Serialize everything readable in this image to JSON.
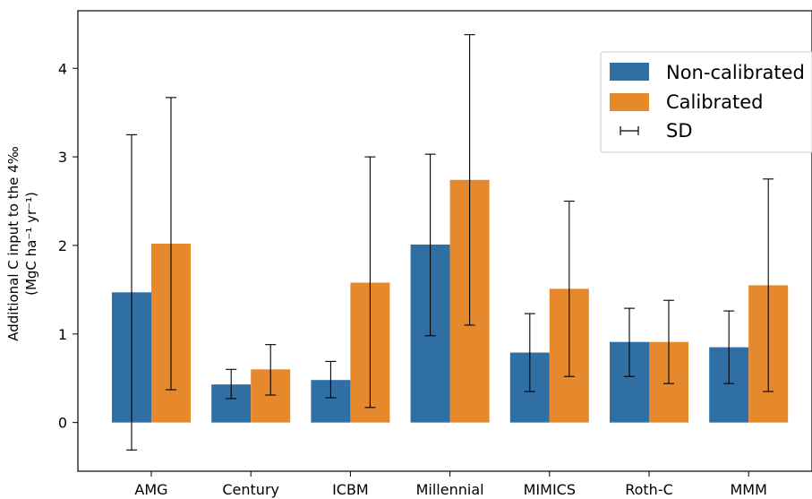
{
  "chart_data": {
    "type": "bar",
    "categories": [
      "AMG",
      "Century",
      "ICBM",
      "Millennial",
      "MIMICS",
      "Roth-C",
      "MMM"
    ],
    "series": [
      {
        "name": "Non-calibrated",
        "color": "#2f6fa3",
        "values": [
          1.47,
          0.43,
          0.48,
          2.01,
          0.79,
          0.91,
          0.85
        ],
        "err_low": [
          -0.31,
          0.27,
          0.28,
          0.98,
          0.35,
          0.52,
          0.44
        ],
        "err_high": [
          3.25,
          0.6,
          0.69,
          3.03,
          1.23,
          1.29,
          1.26
        ]
      },
      {
        "name": "Calibrated",
        "color": "#e6882c",
        "values": [
          2.02,
          0.6,
          1.58,
          2.74,
          1.51,
          0.91,
          1.55
        ],
        "err_low": [
          0.37,
          0.31,
          0.17,
          1.1,
          0.52,
          0.44,
          0.35
        ],
        "err_high": [
          3.67,
          0.88,
          3.0,
          4.38,
          2.5,
          1.38,
          2.75
        ]
      }
    ],
    "error_bar_label": "SD",
    "ylabel_line1": "Additional C input to the 4‰",
    "ylabel_line2": "(MgC ha⁻¹ yr⁻¹)",
    "xlabel": "",
    "yticks": [
      "0",
      "1",
      "2",
      "3",
      "4"
    ],
    "ylim": [
      -0.55,
      4.65
    ],
    "grid": false,
    "legend_position": "top-right"
  }
}
